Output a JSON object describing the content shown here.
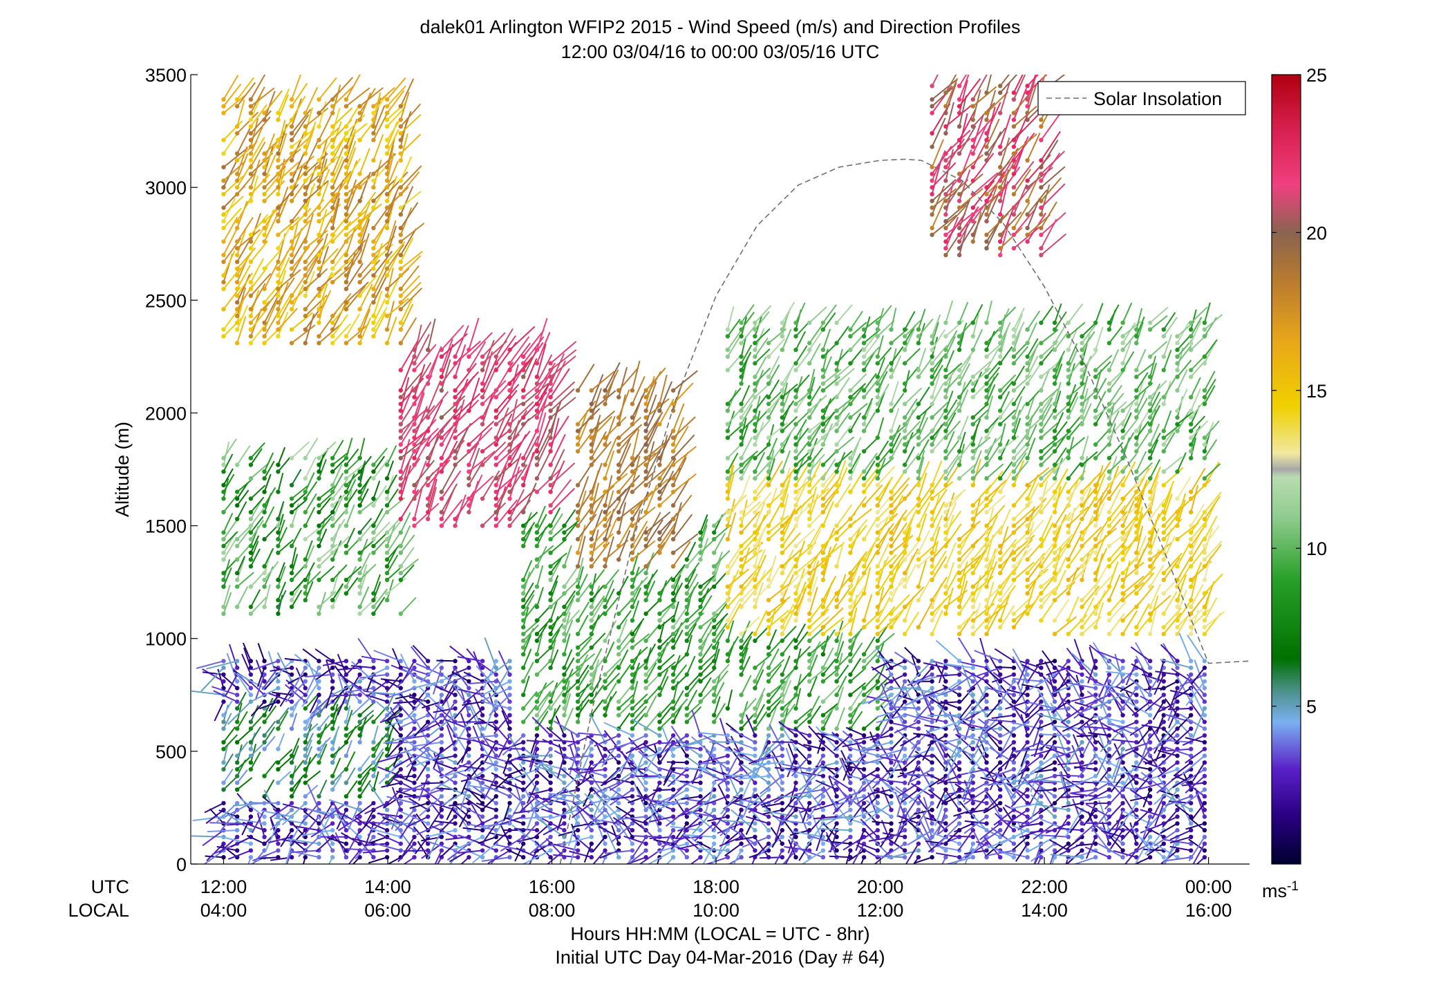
{
  "chart_data": {
    "type": "scatter",
    "title": "dalek01 Arlington WFIP2 2015 - Wind Speed (m/s) and Direction Profiles",
    "subtitle": "12:00 03/04/16 to 00:00 03/05/16  UTC",
    "ylabel": "Altitude (m)",
    "xlabel": "Hours HH:MM  (LOCAL = UTC - 8hr)",
    "footnote": "Initial UTC Day 04-Mar-2016 (Day # 64)",
    "ylim": [
      0,
      3500
    ],
    "y_ticks": [
      "0",
      "500",
      "1000",
      "1500",
      "2000",
      "2500",
      "3000",
      "3500"
    ],
    "xlim_hours_utc": [
      11.6,
      24.5
    ],
    "x_row_labels": {
      "utc": "UTC",
      "local": "LOCAL"
    },
    "x_ticks_utc": [
      "12:00",
      "14:00",
      "16:00",
      "18:00",
      "20:00",
      "22:00",
      "00:00"
    ],
    "x_ticks_local": [
      "04:00",
      "06:00",
      "08:00",
      "10:00",
      "12:00",
      "14:00",
      "16:00"
    ],
    "colorbar": {
      "range": [
        0,
        25
      ],
      "ticks": [
        "5",
        "10",
        "15",
        "20",
        "25"
      ],
      "unit_label": "ms",
      "unit_exponent": "-1"
    },
    "legend": {
      "entries": [
        "Solar Insolation"
      ],
      "placement": "top-right",
      "style": "dashed gray"
    },
    "solar_insolation_curve": {
      "x": [
        16.1,
        16.5,
        17,
        17.5,
        18,
        18.5,
        19,
        19.5,
        20,
        20.3,
        20.5,
        21,
        21.5,
        22,
        22.5,
        23,
        23.5,
        24,
        24.5
      ],
      "y": [
        0,
        700,
        1450,
        2050,
        2520,
        2830,
        3010,
        3090,
        3120,
        3125,
        3120,
        3030,
        2840,
        2560,
        2210,
        1800,
        1350,
        890,
        900
      ]
    },
    "wind_regimes": [
      {
        "hours_utc": [
          12.0,
          24.0
        ],
        "altitude_m": [
          0,
          900
        ],
        "speed_ms": [
          1,
          5
        ],
        "direction": "light, variable, mostly from west"
      },
      {
        "hours_utc": [
          12.0,
          14.0
        ],
        "altitude_m": [
          300,
          700
        ],
        "speed_ms": [
          4,
          8
        ],
        "direction": "southwest"
      },
      {
        "hours_utc": [
          12.0,
          14.2
        ],
        "altitude_m": [
          1100,
          1800
        ],
        "speed_ms": [
          6,
          12
        ],
        "direction": "southwest"
      },
      {
        "hours_utc": [
          12.0,
          14.2
        ],
        "altitude_m": [
          2300,
          3400
        ],
        "speed_ms": [
          14,
          19
        ],
        "direction": "southwest"
      },
      {
        "hours_utc": [
          14.0,
          16.0
        ],
        "altitude_m": [
          1500,
          2300
        ],
        "speed_ms": [
          20,
          23
        ],
        "direction": "southwest"
      },
      {
        "hours_utc": [
          15.5,
          20.0
        ],
        "altitude_m": [
          600,
          1500
        ],
        "speed_ms": [
          7,
          11
        ],
        "direction": "south-southwest"
      },
      {
        "hours_utc": [
          16.2,
          17.6
        ],
        "altitude_m": [
          1300,
          2100
        ],
        "speed_ms": [
          17,
          20
        ],
        "direction": "southwest"
      },
      {
        "hours_utc": [
          18.0,
          24.0
        ],
        "altitude_m": [
          1000,
          1800
        ],
        "speed_ms": [
          13,
          16
        ],
        "direction": "southwest"
      },
      {
        "hours_utc": [
          18.0,
          24.0
        ],
        "altitude_m": [
          1700,
          2400
        ],
        "speed_ms": [
          8,
          12
        ],
        "direction": "southwest"
      },
      {
        "hours_utc": [
          20.5,
          22.0
        ],
        "altitude_m": [
          2700,
          3500
        ],
        "speed_ms": [
          18,
          23
        ],
        "direction": "southwest"
      }
    ]
  }
}
